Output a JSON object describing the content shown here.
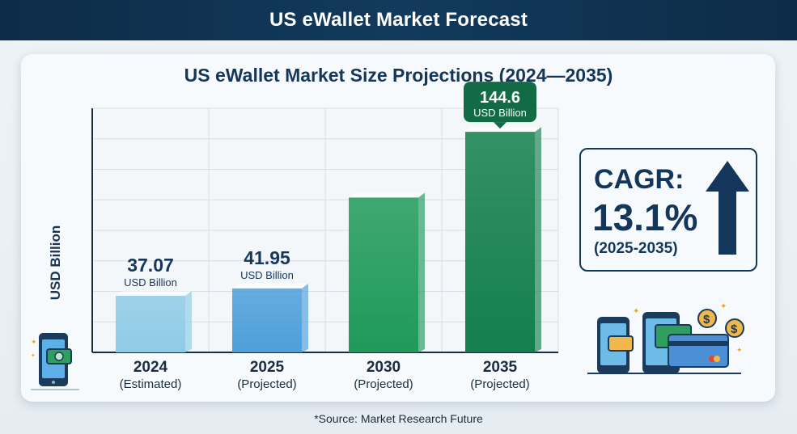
{
  "header": {
    "title": "US eWallet Market Forecast"
  },
  "chart_data": {
    "type": "bar",
    "title": "US eWallet Market Size Projections (2024—2035)",
    "ylabel": "USD Billion",
    "xlabel": "",
    "ylim": [
      0,
      160
    ],
    "grid": true,
    "categories": [
      "2024",
      "2025",
      "2030",
      "2035"
    ],
    "category_notes": [
      "(Estimated)",
      "(Projected)",
      "(Projected)",
      "(Projected)"
    ],
    "values": [
      37.07,
      41.95,
      101.5,
      144.6
    ],
    "value_labels": [
      "37.07",
      "41.95",
      "",
      "144.6"
    ],
    "unit_label": "USD Billion",
    "colors": [
      "#8fcbe6",
      "#4e9fda",
      "#1f9a5a",
      "#137f4c"
    ]
  },
  "cagr": {
    "label": "CAGR:",
    "value": "13.1%",
    "period": "(2025-2035)"
  },
  "source": "*Source: Market Research Future",
  "icons": {
    "left": "mobile-wallet-icon",
    "right": "phones-and-cards-icon",
    "arrow": "up-arrow-icon",
    "coin": "dollar-coin-icon"
  }
}
